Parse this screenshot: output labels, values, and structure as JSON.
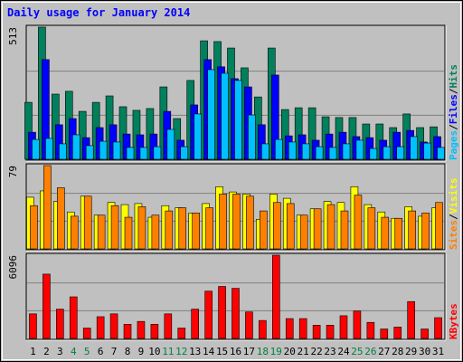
{
  "chart_data": [
    {
      "type": "bar",
      "title": "Daily usage for January 2014",
      "legend_separator": "/",
      "series": [
        {
          "name": "Hits",
          "color": "#00805c",
          "values": [
            221,
            513,
            253,
            264,
            186,
            221,
            246,
            204,
            190,
            197,
            281,
            158,
            306,
            460,
            457,
            432,
            355,
            242,
            432,
            193,
            200,
            200,
            165,
            162,
            162,
            137,
            137,
            123,
            176,
            123,
            126
          ]
        },
        {
          "name": "Files",
          "color": "#0000ff",
          "values": [
            105,
            387,
            134,
            158,
            84,
            123,
            134,
            98,
            95,
            98,
            186,
            74,
            211,
            387,
            359,
            313,
            281,
            134,
            327,
            91,
            95,
            74,
            98,
            105,
            88,
            84,
            74,
            105,
            112,
            67,
            88
          ]
        },
        {
          "name": "Pages",
          "color": "#00c0ff",
          "values": [
            77,
            81,
            60,
            95,
            53,
            70,
            67,
            46,
            46,
            49,
            116,
            49,
            176,
            348,
            334,
            306,
            172,
            60,
            77,
            67,
            60,
            49,
            46,
            60,
            74,
            42,
            49,
            49,
            88,
            63,
            46
          ]
        }
      ],
      "ylim": [
        0,
        513
      ],
      "yticks": [
        513
      ],
      "grid": true
    },
    {
      "type": "bar",
      "legend_separator": "/",
      "series": [
        {
          "name": "Visits",
          "color": "#ffff00",
          "values": [
            49,
            55,
            45,
            35,
            50,
            32,
            44,
            42,
            43,
            30,
            41,
            39,
            34,
            43,
            59,
            54,
            52,
            28,
            52,
            48,
            32,
            38,
            45,
            44,
            59,
            42,
            35,
            29,
            40,
            31,
            39
          ]
        },
        {
          "name": "Sites",
          "color": "#ff8000",
          "values": [
            41,
            79,
            58,
            31,
            50,
            32,
            41,
            30,
            40,
            32,
            36,
            39,
            34,
            39,
            52,
            52,
            50,
            36,
            44,
            43,
            32,
            38,
            42,
            36,
            51,
            39,
            30,
            29,
            36,
            34,
            44
          ]
        }
      ],
      "ylim": [
        0,
        79
      ],
      "yticks": [
        79
      ],
      "grid": true
    },
    {
      "type": "bar",
      "categories": [
        "1",
        "2",
        "3",
        "4",
        "5",
        "6",
        "7",
        "8",
        "9",
        "10",
        "11",
        "12",
        "13",
        "14",
        "15",
        "16",
        "17",
        "18",
        "19",
        "20",
        "21",
        "22",
        "23",
        "24",
        "25",
        "26",
        "27",
        "28",
        "29",
        "30",
        "31"
      ],
      "category_colors": [
        "#000000",
        "#000000",
        "#000000",
        "#008040",
        "#008040",
        "#000000",
        "#000000",
        "#000000",
        "#000000",
        "#000000",
        "#008040",
        "#008040",
        "#000000",
        "#000000",
        "#000000",
        "#000000",
        "#000000",
        "#008040",
        "#008040",
        "#000000",
        "#000000",
        "#000000",
        "#000000",
        "#000000",
        "#008040",
        "#008040",
        "#000000",
        "#000000",
        "#000000",
        "#000000",
        "#000000"
      ],
      "series": [
        {
          "name": "KBytes",
          "color": "#ff0000",
          "values": [
            1801,
            4711,
            2147,
            3048,
            762,
            1593,
            1801,
            1039,
            1247,
            1039,
            1801,
            762,
            2147,
            3464,
            3810,
            3671,
            1940,
            1316,
            6096,
            1455,
            1455,
            970,
            970,
            1663,
            2009,
            1178,
            693,
            831,
            2702,
            693,
            1524
          ]
        }
      ],
      "ylim": [
        0,
        6096
      ],
      "yticks": [
        6096
      ],
      "grid": true
    }
  ]
}
